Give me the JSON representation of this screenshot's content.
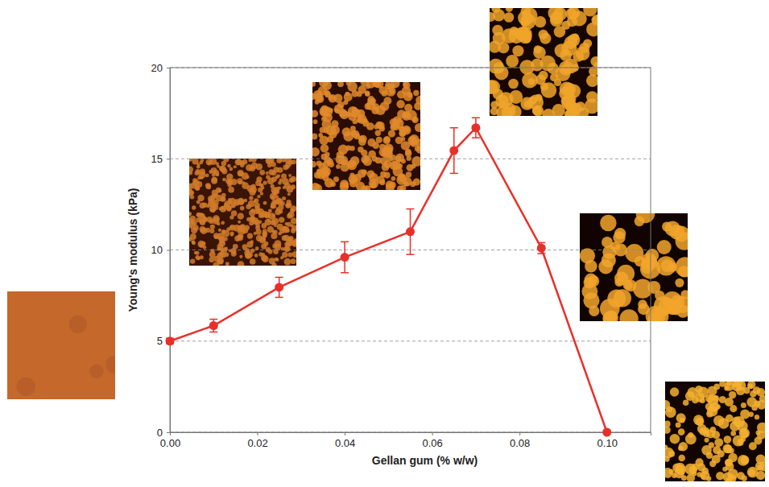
{
  "chart_data": {
    "type": "line",
    "x_label": "Gellan gum (% w/w)",
    "y_label": "Young's modulus (kPa)",
    "x": [
      0,
      0.01,
      0.025,
      0.04,
      0.055,
      0.065,
      0.07,
      0.085,
      0.1
    ],
    "values": [
      5.0,
      5.85,
      7.95,
      9.6,
      11.0,
      15.45,
      16.7,
      10.1,
      0.0
    ],
    "errors": [
      0.15,
      0.35,
      0.55,
      0.85,
      1.25,
      1.25,
      0.55,
      0.3,
      0
    ],
    "color": "#e8302a",
    "marker": "circle",
    "xlim": [
      0,
      0.11
    ],
    "ylim": [
      0,
      20
    ],
    "xticks": [
      {
        "value": 0,
        "label": "0.00"
      },
      0.02,
      0.04,
      0.06,
      0.08,
      {
        "value": 0.1,
        "label": "0.10"
      }
    ],
    "yticks": [
      0,
      5,
      10,
      15,
      20
    ],
    "grid": true
  }
}
